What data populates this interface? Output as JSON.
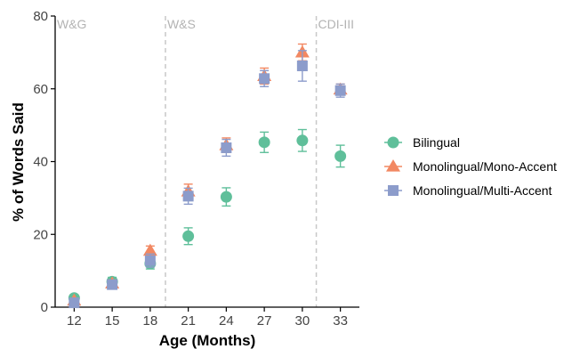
{
  "chart_data": {
    "type": "scatter",
    "title": "",
    "xlabel": "Age (Months)",
    "ylabel": "% of Words Said",
    "x": [
      12,
      15,
      18,
      21,
      24,
      27,
      30,
      33
    ],
    "xlim": [
      10.5,
      34.5
    ],
    "ylim": [
      0,
      80
    ],
    "yticks": [
      0,
      20,
      40,
      60,
      80
    ],
    "grid": false,
    "legend_position": "right",
    "annotations": [
      {
        "text": "W&G",
        "x": 10.5
      },
      {
        "text": "W&S",
        "x": 19.2
      },
      {
        "text": "CDI-III",
        "x": 31.1
      }
    ],
    "vlines": [
      19.2,
      31.1
    ],
    "series": [
      {
        "name": "Bilingual",
        "marker": "circle",
        "color": "#5fbf9a",
        "values": [
          2.5,
          7.0,
          12.0,
          19.5,
          30.3,
          45.3,
          45.8,
          41.5
        ],
        "err": [
          0.8,
          1.2,
          1.5,
          2.3,
          2.5,
          2.8,
          3.0,
          3.0
        ]
      },
      {
        "name": "Monolingual/Mono-Accent",
        "marker": "triangle",
        "color": "#f28862",
        "values": [
          1.8,
          6.5,
          15.5,
          31.8,
          44.5,
          63.5,
          70.0,
          59.8
        ],
        "err": [
          0.5,
          1.0,
          1.3,
          2.0,
          2.0,
          2.2,
          2.3,
          1.5
        ]
      },
      {
        "name": "Monolingual/Multi-Accent",
        "marker": "square",
        "color": "#8c9ccb",
        "values": [
          1.2,
          6.2,
          12.8,
          30.5,
          43.8,
          62.8,
          66.3,
          59.5
        ],
        "err": [
          0.5,
          1.0,
          1.8,
          2.2,
          2.3,
          2.2,
          4.2,
          1.8
        ]
      }
    ]
  }
}
